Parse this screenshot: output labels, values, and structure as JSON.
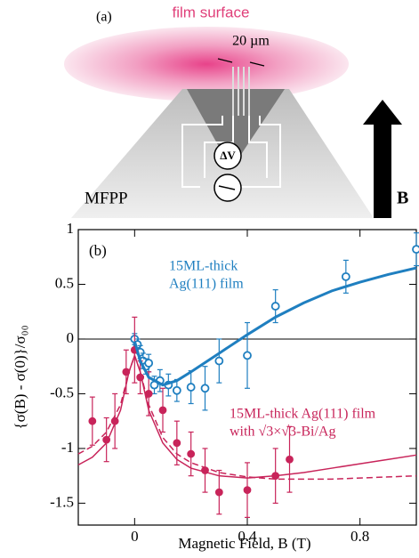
{
  "schematic": {
    "panel": "(a)",
    "surface": "film surface",
    "spacing": "20 µm",
    "voltage": "ΔV",
    "probe": "MFPP",
    "field": "B"
  },
  "chart_data": {
    "type": "scatter",
    "panel": "(b)",
    "x_label": "Magnetic Field, B (T)",
    "y_label": "{σ(B) - σ(0)}/σ₀₀",
    "xlim": [
      -0.2,
      1.0
    ],
    "xticks": [
      0.0,
      0.4,
      0.8
    ],
    "ylim": [
      -1.7,
      1.0
    ],
    "yticks": [
      -1.5,
      -1.0,
      -0.5,
      0.0,
      0.5,
      1.0
    ],
    "zero_line": true,
    "series": [
      {
        "name": [
          "15ML-thick",
          "Ag(111) film"
        ],
        "color": "#1f7fc0",
        "style": "open",
        "x": [
          0.0,
          0.01,
          0.02,
          0.03,
          0.04,
          0.05,
          0.07,
          0.09,
          0.12,
          0.15,
          0.2,
          0.25,
          0.3,
          0.4,
          0.5,
          0.75,
          1.0
        ],
        "values": [
          0.0,
          -0.05,
          -0.12,
          -0.2,
          -0.25,
          -0.22,
          -0.42,
          -0.38,
          -0.42,
          -0.47,
          -0.44,
          -0.45,
          -0.2,
          -0.15,
          0.3,
          0.57,
          0.82
        ],
        "errors": [
          0.05,
          0.05,
          0.06,
          0.07,
          0.07,
          0.08,
          0.08,
          0.1,
          0.1,
          0.1,
          0.15,
          0.2,
          0.2,
          0.3,
          0.15,
          0.15,
          0.15
        ]
      },
      {
        "name": [
          "15ML-thick Ag(111) film",
          "with √3×√3-Bi/Ag"
        ],
        "color": "#c8245a",
        "style": "filled",
        "x": [
          -0.15,
          -0.1,
          -0.07,
          -0.03,
          0.0,
          0.02,
          0.05,
          0.1,
          0.15,
          0.2,
          0.25,
          0.3,
          0.4,
          0.5,
          0.55
        ],
        "values": [
          -0.75,
          -0.92,
          -0.75,
          -0.3,
          -0.1,
          -0.35,
          -0.5,
          -0.65,
          -0.95,
          -1.05,
          -1.2,
          -1.4,
          -1.38,
          -1.25,
          -1.1
        ],
        "errors": [
          0.22,
          0.2,
          0.25,
          0.2,
          0.3,
          0.15,
          0.2,
          0.2,
          0.2,
          0.2,
          0.2,
          0.2,
          0.25,
          0.25,
          0.3
        ]
      },
      {
        "color": "#1f7fc0",
        "style": "solid",
        "x": [
          0.0,
          0.02,
          0.05,
          0.1,
          0.15,
          0.2,
          0.3,
          0.4,
          0.5,
          0.6,
          0.7,
          0.8,
          0.9,
          1.0
        ],
        "values": [
          -0.02,
          -0.2,
          -0.35,
          -0.42,
          -0.38,
          -0.3,
          -0.13,
          0.04,
          0.2,
          0.33,
          0.44,
          0.52,
          0.59,
          0.65
        ]
      },
      {
        "color": "#c8245a",
        "style": "solid",
        "x": [
          -0.2,
          -0.15,
          -0.1,
          -0.05,
          -0.02,
          0.0,
          0.02,
          0.05,
          0.1,
          0.15,
          0.2,
          0.3,
          0.4,
          0.5,
          0.6,
          0.7,
          0.8,
          0.9,
          1.0
        ],
        "values": [
          -1.15,
          -1.08,
          -0.95,
          -0.65,
          -0.3,
          -0.15,
          -0.3,
          -0.65,
          -0.95,
          -1.1,
          -1.18,
          -1.25,
          -1.27,
          -1.25,
          -1.22,
          -1.18,
          -1.14,
          -1.1,
          -1.06
        ]
      },
      {
        "color": "#c8245a",
        "style": "dashed",
        "x": [
          -0.2,
          -0.15,
          -0.1,
          -0.05,
          -0.02,
          0.0,
          0.02,
          0.05,
          0.1,
          0.15,
          0.2,
          0.3,
          0.4,
          0.5,
          0.6,
          0.7,
          0.8,
          0.9,
          1.0
        ],
        "values": [
          -1.05,
          -0.98,
          -0.85,
          -0.6,
          -0.3,
          -0.15,
          -0.3,
          -0.6,
          -0.9,
          -1.05,
          -1.13,
          -1.22,
          -1.26,
          -1.28,
          -1.28,
          -1.28,
          -1.27,
          -1.26,
          -1.25
        ]
      }
    ]
  }
}
